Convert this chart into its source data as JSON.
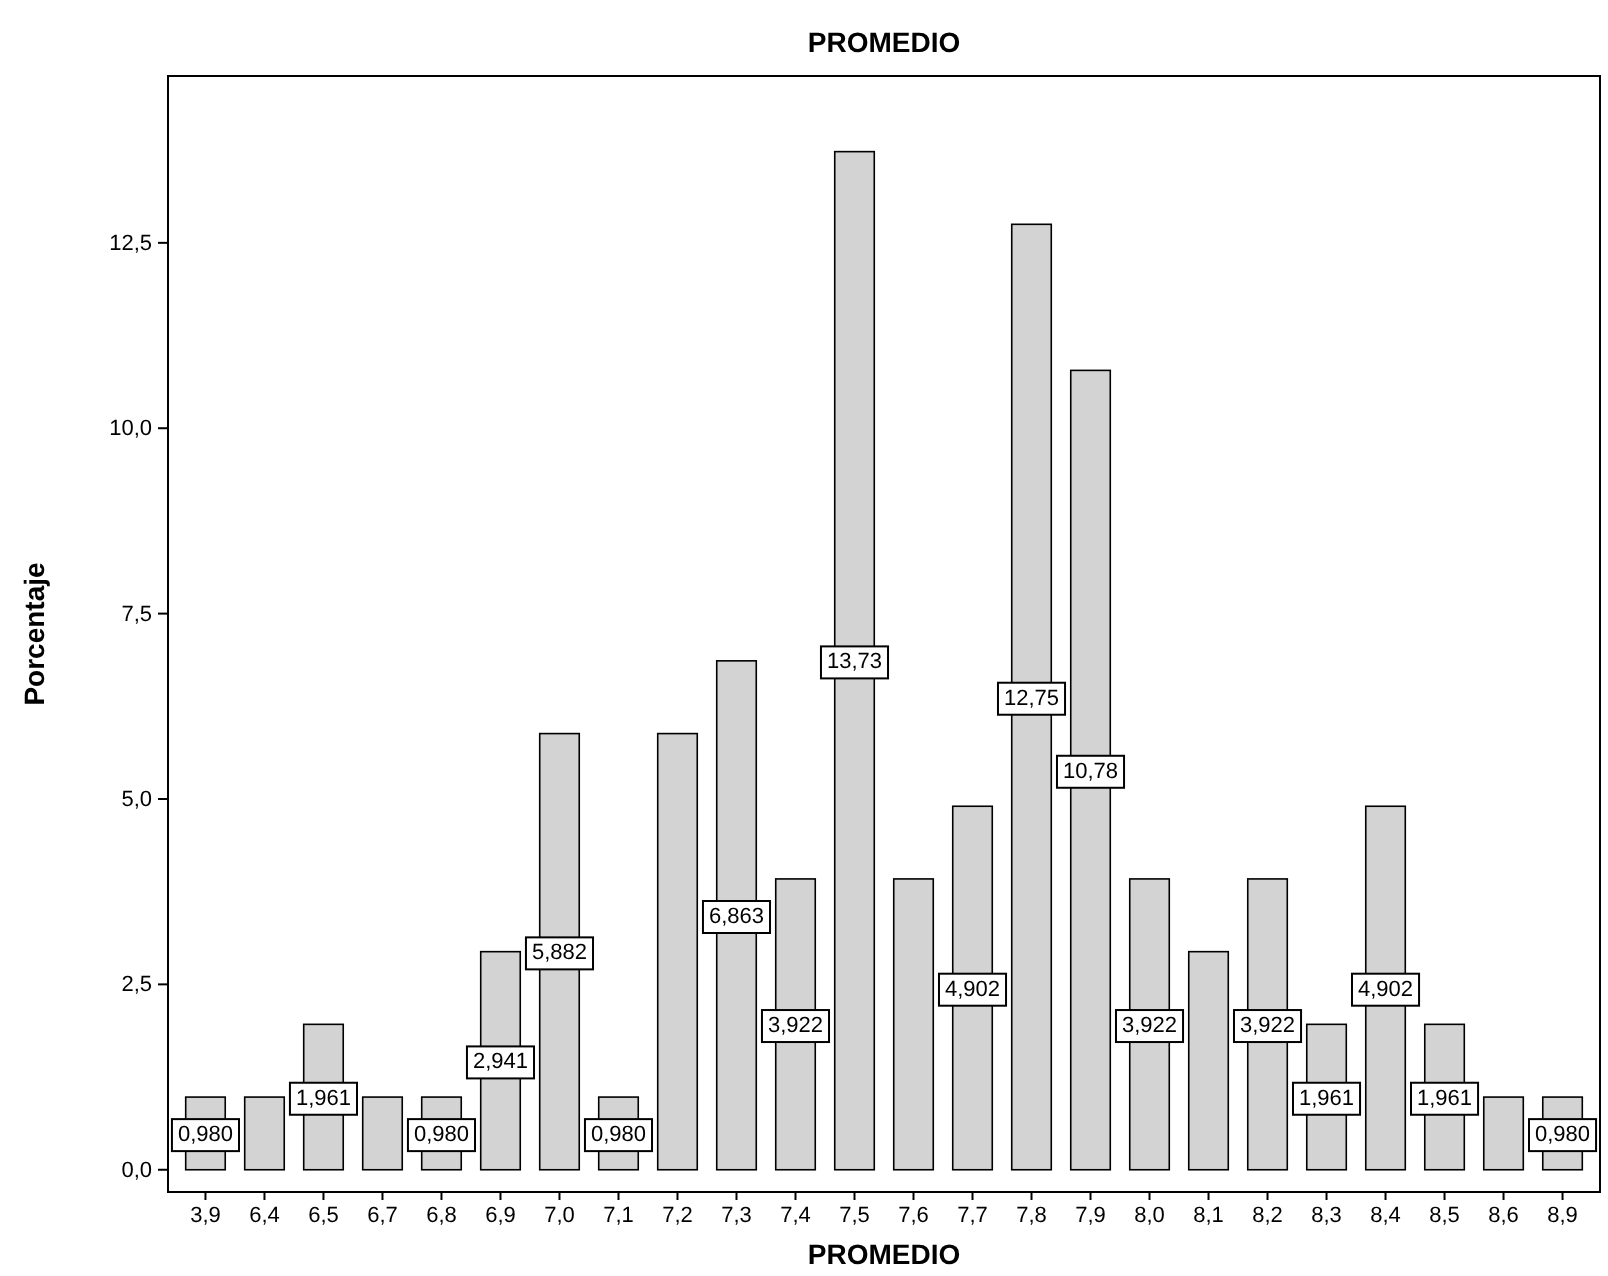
{
  "chart_data": {
    "type": "bar",
    "title": "PROMEDIO",
    "xlabel": "PROMEDIO",
    "ylabel": "Porcentaje",
    "categories": [
      "3,9",
      "6,4",
      "6,5",
      "6,7",
      "6,8",
      "6,9",
      "7,0",
      "7,1",
      "7,2",
      "7,3",
      "7,4",
      "7,5",
      "7,6",
      "7,7",
      "7,8",
      "7,9",
      "8,0",
      "8,1",
      "8,2",
      "8,3",
      "8,4",
      "8,5",
      "8,6",
      "8,9"
    ],
    "values": [
      0.98,
      0.98,
      1.961,
      0.98,
      0.98,
      2.941,
      5.882,
      0.98,
      5.882,
      6.863,
      3.922,
      13.73,
      3.922,
      4.902,
      12.75,
      10.78,
      3.922,
      2.941,
      3.922,
      1.961,
      4.902,
      1.961,
      0.98,
      0.98
    ],
    "value_labels": [
      "0,980",
      null,
      "1,961",
      null,
      "0,980",
      "2,941",
      "5,882",
      "0,980",
      null,
      "6,863",
      "3,922",
      "13,73",
      null,
      "4,902",
      "12,75",
      "10,78",
      "3,922",
      null,
      "3,922",
      "1,961",
      "4,902",
      "1,961",
      null,
      "0,980"
    ],
    "color": "#d3d3d3",
    "ylim": [
      -0.3,
      14.75
    ],
    "yticks": [
      {
        "value": 0,
        "label": "0,0"
      },
      {
        "value": 2.5,
        "label": "2,5"
      },
      {
        "value": 5,
        "label": "5,0"
      },
      {
        "value": 7.5,
        "label": "7,5"
      },
      {
        "value": 10,
        "label": "10,0"
      },
      {
        "value": 12.5,
        "label": "12,5"
      }
    ],
    "grid": false
  }
}
